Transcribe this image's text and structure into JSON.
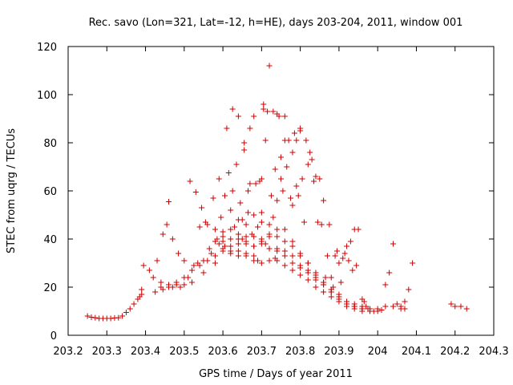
{
  "chart_data": {
    "type": "scatter",
    "title": "Rec. savo (Lon=321, Lat=-12, h=HE), days 203-204, 2011, window 001",
    "xlabel": "GPS time / Days of year 2011",
    "ylabel": "STEC from uqrg / TECUs",
    "xlim": [
      203.2,
      204.3
    ],
    "ylim": [
      0,
      120
    ],
    "grid": false,
    "legend": "none",
    "marker": "plus",
    "color": "#cc0000",
    "xticks": [
      "203.2",
      "203.3",
      "203.4",
      "203.5",
      "203.6",
      "203.7",
      "203.8",
      "203.9",
      "204",
      "204.1",
      "204.2",
      "204.3"
    ],
    "xtick_values": [
      203.2,
      203.3,
      203.4,
      203.5,
      203.6,
      203.7,
      203.8,
      203.9,
      204.0,
      204.1,
      204.2,
      204.3
    ],
    "yticks": [
      "0",
      "20",
      "40",
      "60",
      "80",
      "100",
      "120"
    ],
    "ytick_values": [
      0,
      20,
      40,
      60,
      80,
      100,
      120
    ],
    "points": [
      [
        203.25,
        8
      ],
      [
        203.26,
        7.5
      ],
      [
        203.27,
        7.3
      ],
      [
        203.28,
        7
      ],
      [
        203.29,
        7
      ],
      [
        203.3,
        7
      ],
      [
        203.31,
        7
      ],
      [
        203.32,
        7.2
      ],
      [
        203.33,
        7.3
      ],
      [
        203.34,
        8
      ],
      [
        203.35,
        9.5
      ],
      [
        203.36,
        11
      ],
      [
        203.37,
        13
      ],
      [
        203.38,
        15
      ],
      [
        203.385,
        16
      ],
      [
        203.39,
        17
      ],
      [
        203.39,
        19
      ],
      [
        203.395,
        29
      ],
      [
        203.41,
        27
      ],
      [
        203.42,
        24
      ],
      [
        203.425,
        18
      ],
      [
        203.43,
        31
      ],
      [
        203.44,
        22
      ],
      [
        203.445,
        19
      ],
      [
        203.445,
        42
      ],
      [
        203.455,
        46
      ],
      [
        203.46,
        55.5
      ],
      [
        203.46,
        21
      ],
      [
        203.47,
        40
      ],
      [
        203.47,
        20
      ],
      [
        203.48,
        21
      ],
      [
        203.485,
        34
      ],
      [
        203.49,
        20
      ],
      [
        203.5,
        21
      ],
      [
        203.5,
        31
      ],
      [
        203.51,
        24
      ],
      [
        203.515,
        64
      ],
      [
        203.52,
        22
      ],
      [
        203.525,
        29
      ],
      [
        203.53,
        59.5
      ],
      [
        203.535,
        30
      ],
      [
        203.54,
        45
      ],
      [
        203.545,
        53
      ],
      [
        203.55,
        31
      ],
      [
        203.55,
        26
      ],
      [
        203.555,
        47
      ],
      [
        203.56,
        46
      ],
      [
        203.565,
        36
      ],
      [
        203.57,
        34
      ],
      [
        203.575,
        57
      ],
      [
        203.58,
        30
      ],
      [
        203.58,
        44
      ],
      [
        203.585,
        40
      ],
      [
        203.59,
        38
      ],
      [
        203.59,
        65
      ],
      [
        203.595,
        49
      ],
      [
        203.6,
        41
      ],
      [
        203.605,
        37
      ],
      [
        203.605,
        58
      ],
      [
        203.61,
        86
      ],
      [
        203.615,
        67.5
      ],
      [
        203.62,
        52
      ],
      [
        203.62,
        35
      ],
      [
        203.625,
        60
      ],
      [
        203.625,
        94
      ],
      [
        203.63,
        45
      ],
      [
        203.635,
        71
      ],
      [
        203.64,
        35
      ],
      [
        203.64,
        91
      ],
      [
        203.645,
        55
      ],
      [
        203.65,
        40
      ],
      [
        203.65,
        48
      ],
      [
        203.655,
        77
      ],
      [
        203.655,
        80
      ],
      [
        203.66,
        34
      ],
      [
        203.665,
        51
      ],
      [
        203.665,
        60
      ],
      [
        203.67,
        86
      ],
      [
        203.67,
        63
      ],
      [
        203.675,
        42
      ],
      [
        203.68,
        33
      ],
      [
        203.68,
        91
      ],
      [
        203.685,
        63
      ],
      [
        203.69,
        45
      ],
      [
        203.695,
        64
      ],
      [
        203.69,
        31
      ],
      [
        203.7,
        51
      ],
      [
        203.7,
        65
      ],
      [
        203.705,
        94
      ],
      [
        203.705,
        96
      ],
      [
        203.71,
        81
      ],
      [
        203.71,
        38
      ],
      [
        203.715,
        93
      ],
      [
        203.72,
        112
      ],
      [
        203.72,
        42
      ],
      [
        203.725,
        58
      ],
      [
        203.73,
        49
      ],
      [
        203.73,
        93
      ],
      [
        203.735,
        69
      ],
      [
        203.735,
        32
      ],
      [
        203.74,
        92
      ],
      [
        203.74,
        56
      ],
      [
        203.745,
        91
      ],
      [
        203.75,
        74
      ],
      [
        203.75,
        65
      ],
      [
        203.755,
        60
      ],
      [
        203.76,
        91
      ],
      [
        203.76,
        81
      ],
      [
        203.765,
        70
      ],
      [
        203.77,
        81
      ],
      [
        203.775,
        57
      ],
      [
        203.78,
        76
      ],
      [
        203.78,
        54
      ],
      [
        203.785,
        84
      ],
      [
        203.79,
        81
      ],
      [
        203.79,
        62
      ],
      [
        203.795,
        58
      ],
      [
        203.8,
        86
      ],
      [
        203.8,
        85
      ],
      [
        203.805,
        65
      ],
      [
        203.81,
        47
      ],
      [
        203.815,
        81
      ],
      [
        203.82,
        71
      ],
      [
        203.825,
        76
      ],
      [
        203.83,
        73
      ],
      [
        203.835,
        64
      ],
      [
        203.84,
        66
      ],
      [
        203.845,
        47
      ],
      [
        203.85,
        65
      ],
      [
        203.855,
        46
      ],
      [
        203.86,
        56
      ],
      [
        203.865,
        24
      ],
      [
        203.87,
        33
      ],
      [
        203.875,
        46
      ],
      [
        203.88,
        24
      ],
      [
        203.885,
        20
      ],
      [
        203.89,
        33
      ],
      [
        203.895,
        35
      ],
      [
        203.9,
        30
      ],
      [
        203.905,
        22
      ],
      [
        203.91,
        32
      ],
      [
        203.915,
        34
      ],
      [
        203.92,
        37
      ],
      [
        203.925,
        31
      ],
      [
        203.93,
        39
      ],
      [
        203.935,
        27
      ],
      [
        203.94,
        44
      ],
      [
        203.945,
        29
      ],
      [
        203.95,
        44
      ],
      [
        203.96,
        15
      ],
      [
        203.965,
        14
      ],
      [
        203.97,
        12
      ],
      [
        203.975,
        11
      ],
      [
        203.98,
        10
      ],
      [
        203.99,
        10
      ],
      [
        204.0,
        10
      ],
      [
        204.01,
        10.5
      ],
      [
        204.02,
        21
      ],
      [
        204.03,
        26
      ],
      [
        204.04,
        38
      ],
      [
        204.05,
        13
      ],
      [
        204.06,
        11
      ],
      [
        204.07,
        14
      ],
      [
        204.08,
        19
      ],
      [
        204.09,
        30
      ],
      [
        204.19,
        13
      ],
      [
        204.2,
        12
      ],
      [
        204.215,
        12
      ],
      [
        204.23,
        11
      ],
      [
        203.6,
        35
      ],
      [
        203.62,
        34
      ],
      [
        203.64,
        33
      ],
      [
        203.66,
        33
      ],
      [
        203.68,
        31
      ],
      [
        203.7,
        30
      ],
      [
        203.72,
        31
      ],
      [
        203.74,
        31
      ],
      [
        203.76,
        29
      ],
      [
        203.78,
        27
      ],
      [
        203.8,
        25
      ],
      [
        203.82,
        23
      ],
      [
        203.84,
        20
      ],
      [
        203.86,
        18
      ],
      [
        203.88,
        16
      ],
      [
        203.9,
        14
      ],
      [
        203.92,
        12
      ],
      [
        203.94,
        11
      ],
      [
        203.96,
        10
      ],
      [
        203.98,
        10
      ],
      [
        203.58,
        39
      ],
      [
        203.6,
        39
      ],
      [
        203.62,
        40
      ],
      [
        203.64,
        40
      ],
      [
        203.66,
        38
      ],
      [
        203.68,
        37
      ],
      [
        203.7,
        38
      ],
      [
        203.72,
        36
      ],
      [
        203.74,
        36
      ],
      [
        203.76,
        33
      ],
      [
        203.78,
        30
      ],
      [
        203.8,
        28
      ],
      [
        203.82,
        26
      ],
      [
        203.84,
        23
      ],
      [
        203.86,
        21
      ],
      [
        203.88,
        18
      ],
      [
        203.9,
        16
      ],
      [
        203.92,
        13
      ],
      [
        203.94,
        12
      ],
      [
        203.96,
        11
      ],
      [
        203.6,
        43
      ],
      [
        203.62,
        44
      ],
      [
        203.64,
        42
      ],
      [
        203.66,
        41
      ],
      [
        203.68,
        41
      ],
      [
        203.7,
        40
      ],
      [
        203.72,
        41
      ],
      [
        203.74,
        41
      ],
      [
        203.76,
        39
      ],
      [
        203.78,
        37
      ],
      [
        203.8,
        34
      ],
      [
        203.82,
        30
      ],
      [
        203.84,
        26
      ],
      [
        203.86,
        22
      ],
      [
        203.88,
        19
      ],
      [
        203.9,
        16
      ],
      [
        203.92,
        14
      ],
      [
        203.94,
        12
      ],
      [
        203.96,
        11
      ],
      [
        203.98,
        10
      ],
      [
        203.64,
        48
      ],
      [
        203.66,
        46
      ],
      [
        203.68,
        50
      ],
      [
        203.7,
        47
      ],
      [
        203.72,
        46
      ],
      [
        203.74,
        44
      ],
      [
        203.76,
        44
      ],
      [
        203.78,
        39
      ],
      [
        203.8,
        33
      ],
      [
        203.82,
        30
      ],
      [
        203.84,
        25
      ],
      [
        203.86,
        22
      ],
      [
        203.88,
        19
      ],
      [
        203.9,
        17
      ],
      [
        203.92,
        14
      ],
      [
        203.94,
        13
      ],
      [
        203.96,
        12
      ],
      [
        203.98,
        11
      ],
      [
        203.44,
        20
      ],
      [
        203.46,
        20
      ],
      [
        203.48,
        22
      ],
      [
        203.5,
        24
      ],
      [
        203.52,
        27
      ],
      [
        203.54,
        29
      ],
      [
        203.56,
        31
      ],
      [
        203.58,
        33
      ],
      [
        203.6,
        36
      ],
      [
        203.62,
        37
      ],
      [
        203.64,
        38
      ],
      [
        203.66,
        39
      ],
      [
        203.68,
        37
      ],
      [
        203.7,
        39
      ],
      [
        203.72,
        36
      ],
      [
        203.74,
        35
      ],
      [
        203.76,
        35
      ],
      [
        203.78,
        33
      ],
      [
        203.8,
        29
      ],
      [
        203.82,
        27
      ],
      [
        203.84,
        24
      ],
      [
        203.86,
        21
      ],
      [
        203.88,
        18
      ],
      [
        203.9,
        15
      ],
      [
        203.92,
        13
      ],
      [
        203.94,
        12
      ],
      [
        203.96,
        11
      ],
      [
        203.98,
        11
      ],
      [
        204.0,
        11
      ],
      [
        204.02,
        12
      ],
      [
        204.04,
        12
      ],
      [
        204.06,
        12
      ],
      [
        204.07,
        11
      ]
    ]
  }
}
